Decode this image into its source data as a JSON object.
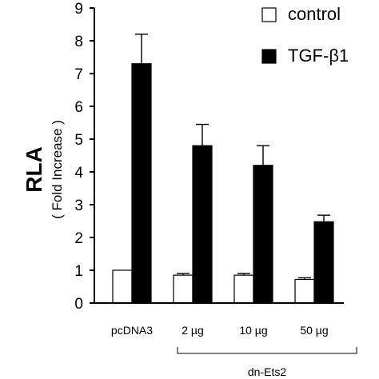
{
  "chart_data": {
    "type": "bar",
    "categories": [
      "pcDNA3",
      "2 µg",
      "10 µg",
      "50 µg"
    ],
    "group_label": "dn-Ets2",
    "ylabel": "RLA",
    "ylabel_sub": "( Fold Increase )",
    "ylim": [
      0,
      9
    ],
    "yticks": [
      0,
      1,
      2,
      3,
      4,
      5,
      6,
      7,
      8,
      9
    ],
    "legend_placement": "top-right",
    "series": [
      {
        "name": "control",
        "color": "#ffffff",
        "values": [
          1.0,
          0.85,
          0.85,
          0.72
        ],
        "errors": [
          0.0,
          0.05,
          0.05,
          0.05
        ]
      },
      {
        "name": "TGF-β1",
        "color": "#000000",
        "values": [
          7.3,
          4.8,
          4.2,
          2.48
        ],
        "errors": [
          0.9,
          0.65,
          0.6,
          0.2
        ]
      }
    ]
  }
}
